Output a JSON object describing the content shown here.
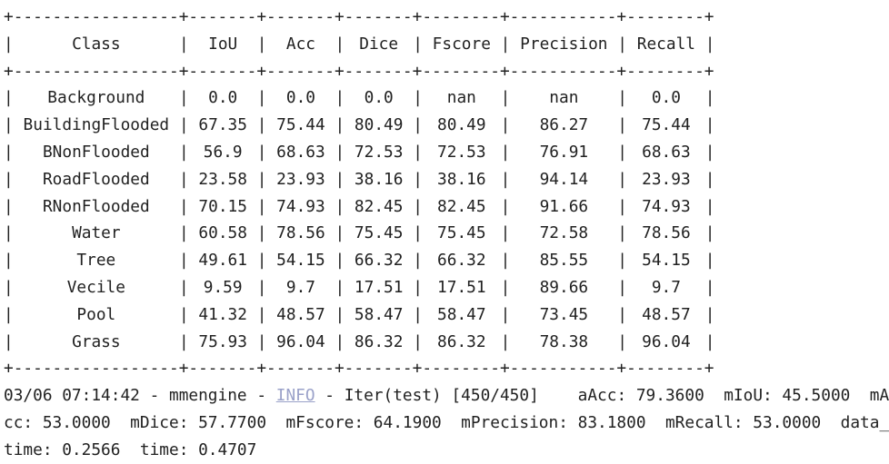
{
  "table": {
    "border_line": "+-----------------+-------+-------+-------+--------+-----------+--------+",
    "headers": [
      "Class",
      "IoU",
      "Acc",
      "Dice",
      "Fscore",
      "Precision",
      "Recall"
    ],
    "rows": [
      [
        "Background",
        "0.0",
        "0.0",
        "0.0",
        "nan",
        "nan",
        "0.0"
      ],
      [
        "BuildingFlooded",
        "67.35",
        "75.44",
        "80.49",
        "80.49",
        "86.27",
        "75.44"
      ],
      [
        "BNonFlooded",
        "56.9",
        "68.63",
        "72.53",
        "72.53",
        "76.91",
        "68.63"
      ],
      [
        "RoadFlooded",
        "23.58",
        "23.93",
        "38.16",
        "38.16",
        "94.14",
        "23.93"
      ],
      [
        "RNonFlooded",
        "70.15",
        "74.93",
        "82.45",
        "82.45",
        "91.66",
        "74.93"
      ],
      [
        "Water",
        "60.58",
        "78.56",
        "75.45",
        "75.45",
        "72.58",
        "78.56"
      ],
      [
        "Tree",
        "49.61",
        "54.15",
        "66.32",
        "66.32",
        "85.55",
        "54.15"
      ],
      [
        "Vecile",
        "9.59",
        "9.7",
        "17.51",
        "17.51",
        "89.66",
        "9.7"
      ],
      [
        "Pool",
        "41.32",
        "48.57",
        "58.47",
        "58.47",
        "73.45",
        "48.57"
      ],
      [
        "Grass",
        "75.93",
        "96.04",
        "86.32",
        "86.32",
        "78.38",
        "96.04"
      ]
    ]
  },
  "log": {
    "line1_prefix": "03/06 07:14:42 - mmengine - ",
    "level": "INFO",
    "line1_suffix": " - Iter(test) [450/450]    aAcc: 79.3600  mIoU: 45.5000  mA",
    "line2": "cc: 53.0000  mDice: 57.7700  mFscore: 64.1900  mPrecision: 83.1800  mRecall: 53.0000  data_",
    "line3": "time: 0.2566  time: 0.4707"
  }
}
